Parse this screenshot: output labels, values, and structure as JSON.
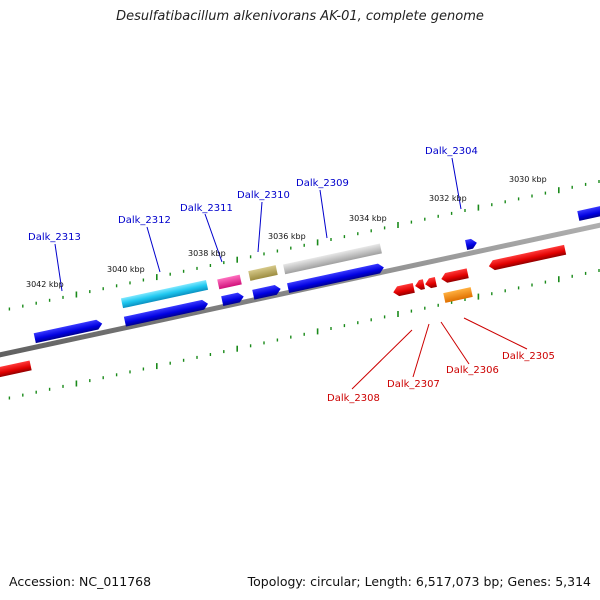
{
  "title": "Desulfatibacillum alkenivorans AK-01, complete genome",
  "footer": {
    "accession": "Accession: NC_011768",
    "summary": "Topology: circular; Length: 6,517,073 bp; Genes: 5,314"
  },
  "colors": {
    "forward_gene": "#0000e6",
    "reverse_gene": "#e60000",
    "forward_label": "#0000cc",
    "reverse_label": "#cc0000",
    "tick": "#1a8a1a",
    "backbone": "#808080"
  },
  "scale_labels": [
    "3042 kbp",
    "3040 kbp",
    "3038 kbp",
    "3036 kbp",
    "3034 kbp",
    "3032 kbp",
    "3030 kbp"
  ],
  "forward_labels": [
    "Dalk_2313",
    "Dalk_2312",
    "Dalk_2311",
    "Dalk_2310",
    "Dalk_2309",
    "Dalk_2304"
  ],
  "reverse_labels": [
    "Dalk_2308",
    "Dalk_2307",
    "Dalk_2306",
    "Dalk_2305"
  ]
}
